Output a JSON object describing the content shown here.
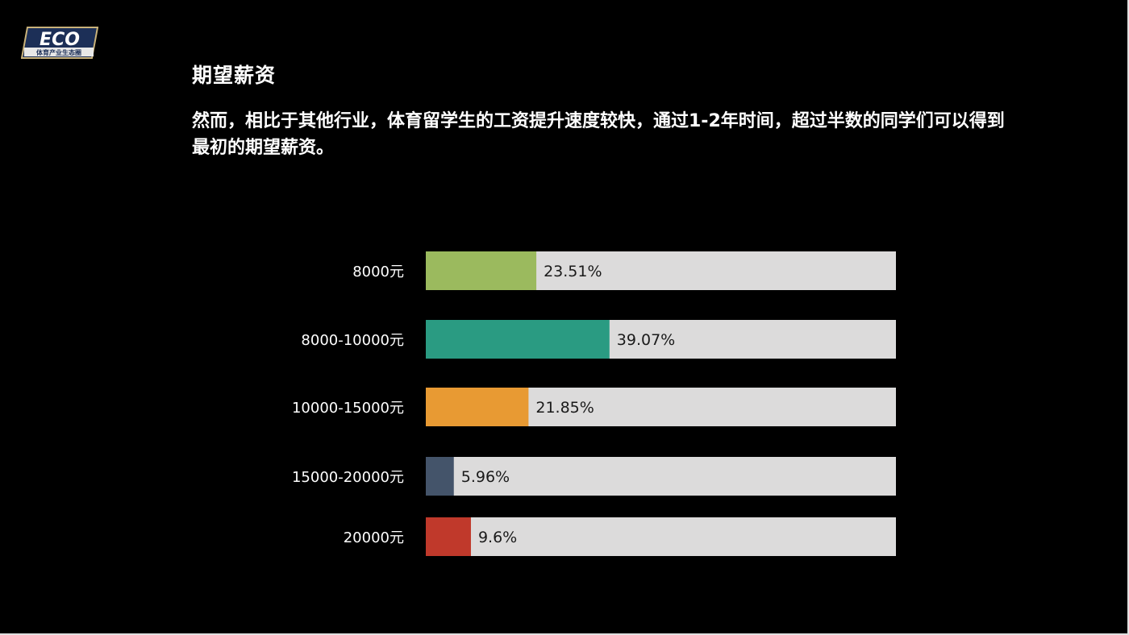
{
  "logo": {
    "wordmark": "ECO",
    "tagline": "体育产业生态圈"
  },
  "heading": "期望薪资",
  "description": "然而，相比于其他行业，体育留学生的工资提升速度较快，通过1-2年时间，超过半数的同学们可以得到最初的期望薪资。",
  "chart_data": {
    "type": "bar",
    "orientation": "horizontal",
    "title": "",
    "xlabel": "",
    "ylabel": "",
    "xlim": [
      0,
      100
    ],
    "unit": "%",
    "grid": false,
    "legend": "none",
    "track_color": "#dcdbdb",
    "categories": [
      "8000元",
      "8000-10000元",
      "10000-15000元",
      "15000-20000元",
      "20000元"
    ],
    "values": [
      23.51,
      39.07,
      21.85,
      5.96,
      9.6
    ],
    "value_labels": [
      "23.51%",
      "39.07%",
      "21.85%",
      "5.96%",
      "9.6%"
    ],
    "colors": [
      "#9bba5e",
      "#2a9b82",
      "#e89a33",
      "#44546a",
      "#c0392b"
    ]
  }
}
